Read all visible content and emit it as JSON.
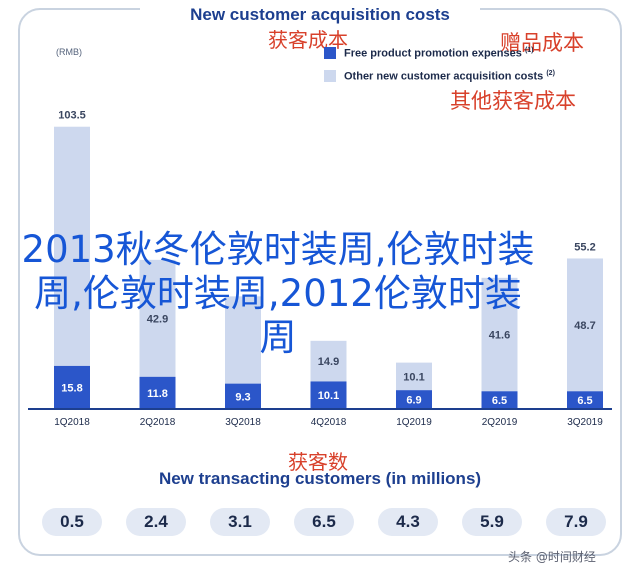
{
  "header": {
    "title": "New customer acquisition costs",
    "cn_cost": "获客成本",
    "cn_gift": "赠品成本",
    "cn_other": "其他获客成本",
    "unit": "(RMB)"
  },
  "legend": [
    {
      "label": "Free product promotion expenses",
      "note": "(1)",
      "color": "#2b56c9"
    },
    {
      "label": "Other new customer acquisition costs",
      "note": "(2)",
      "color": "#cdd8ee"
    }
  ],
  "overlay_text": "2013秋冬伦敦时装周,伦敦时装周,伦敦时装周,2012伦敦时装周",
  "chart_data": {
    "type": "bar",
    "stacked": true,
    "categories": [
      "1Q2018",
      "2Q2018",
      "3Q2018",
      "4Q2018",
      "1Q2019",
      "2Q2019",
      "3Q2019"
    ],
    "series": [
      {
        "name": "Free product promotion expenses",
        "values": [
          15.8,
          11.8,
          9.3,
          10.1,
          6.9,
          6.5,
          6.5
        ]
      },
      {
        "name": "Other new customer acquisition costs",
        "values": [
          87.7,
          42.9,
          32.0,
          14.9,
          10.1,
          41.6,
          48.7
        ]
      }
    ],
    "totals": [
      103.5,
      null,
      null,
      null,
      null,
      null,
      55.2
    ],
    "visible_total_labels": [
      "103.5",
      "",
      "",
      "",
      "",
      "",
      "55.2"
    ],
    "visible_top_labels": [
      "",
      "42.9",
      "",
      "14.9",
      "10.1",
      "41.6",
      "48.7"
    ],
    "ylabel": "(RMB)",
    "ylim": [
      0,
      110
    ],
    "colors": {
      "bottom": "#2b56c9",
      "top": "#cdd8ee",
      "axis": "#1d3f8f"
    }
  },
  "customers": {
    "cn_title": "获客数",
    "title": "New transacting customers (in millions)",
    "values": [
      "0.5",
      "2.4",
      "3.1",
      "6.5",
      "4.3",
      "5.9",
      "7.9"
    ]
  },
  "watermark": "头条 @时间财经"
}
